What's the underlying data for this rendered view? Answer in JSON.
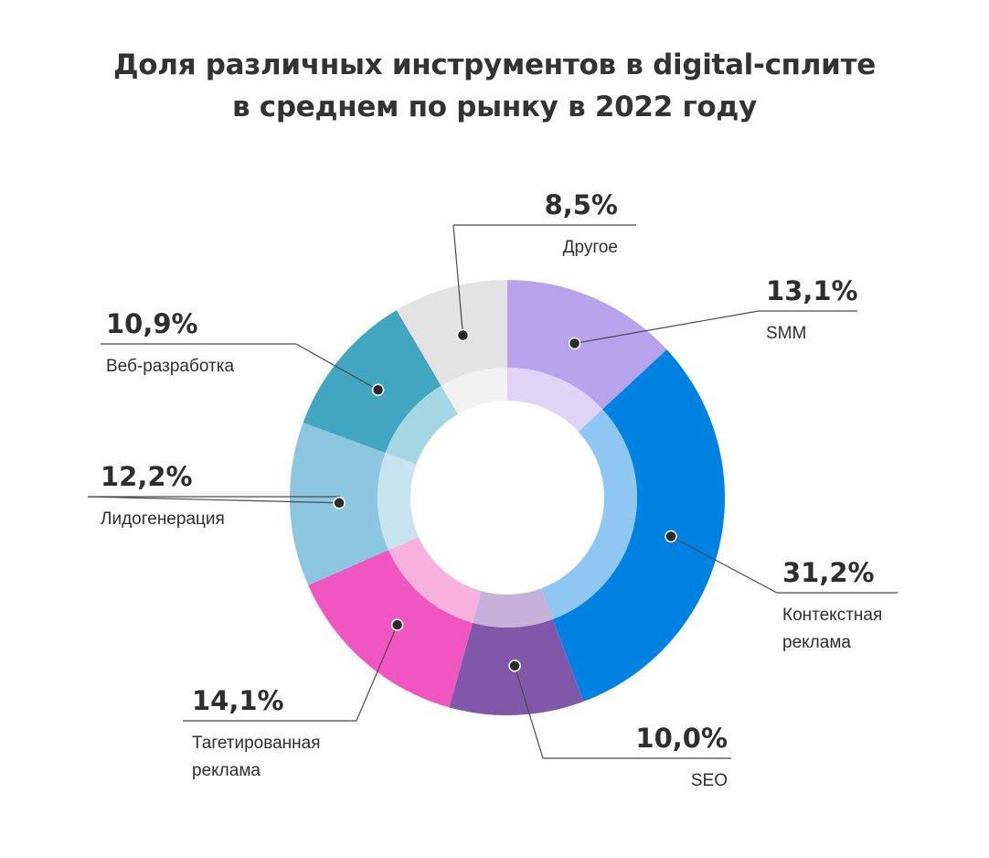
{
  "chart_data": {
    "type": "pie",
    "title": [
      "Доля различных инструментов в digital-сплите",
      "в среднем по рынку в 2022 году"
    ],
    "start_angle_deg": 0,
    "direction": "clockwise",
    "slices": [
      {
        "label": [
          "SMM"
        ],
        "value": 13.1,
        "value_label": "13,1%",
        "color": "#b7a3ec",
        "inner_color": "#dfd4f6"
      },
      {
        "label": [
          "Контекстная",
          "реклама"
        ],
        "value": 31.2,
        "value_label": "31,2%",
        "color": "#0082e3",
        "inner_color": "#8fc6f2"
      },
      {
        "label": [
          "SEO"
        ],
        "value": 10.0,
        "value_label": "10,0%",
        "color": "#8157a9",
        "inner_color": "#c6b2d8"
      },
      {
        "label": [
          "Тагетированная",
          "реклама"
        ],
        "value": 14.1,
        "value_label": "14,1%",
        "color": "#f155bf",
        "inner_color": "#f8b0df"
      },
      {
        "label": [
          "Лидогенерация"
        ],
        "value": 12.2,
        "value_label": "12,2%",
        "color": "#8cc6e0",
        "inner_color": "#c7e4f0"
      },
      {
        "label": [
          "Веб-разработка"
        ],
        "value": 10.9,
        "value_label": "10,9%",
        "color": "#41a6c0",
        "inner_color": "#a5d6e3"
      },
      {
        "label": [
          "Другое"
        ],
        "value": 8.5,
        "value_label": "8,5%",
        "color": "#e3e3e3",
        "inner_color": "#f2f2f2"
      }
    ]
  }
}
